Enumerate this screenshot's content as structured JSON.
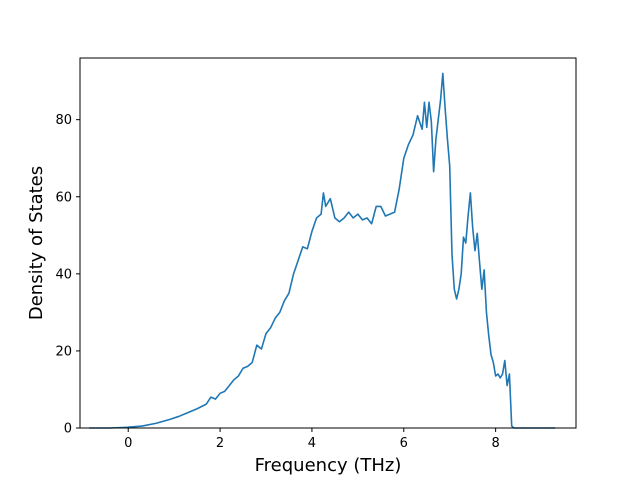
{
  "chart_data": {
    "type": "line",
    "title": "",
    "xlabel": "Frequency (THz)",
    "ylabel": "Density of States",
    "xlim": [
      -1.05,
      9.75
    ],
    "ylim": [
      0,
      96
    ],
    "grid": false,
    "legend": "none",
    "color": "#1f77b4",
    "x_ticks": [
      {
        "value": 0,
        "label": "0"
      },
      {
        "value": 2,
        "label": "2"
      },
      {
        "value": 4,
        "label": "4"
      },
      {
        "value": 6,
        "label": "6"
      },
      {
        "value": 8,
        "label": "8"
      }
    ],
    "y_ticks": [
      {
        "value": 0,
        "label": "0"
      },
      {
        "value": 20,
        "label": "20"
      },
      {
        "value": 40,
        "label": "40"
      },
      {
        "value": 60,
        "label": "60"
      },
      {
        "value": 80,
        "label": "80"
      }
    ],
    "series": [
      {
        "x": [
          -0.85,
          -0.4,
          0.0,
          0.3,
          0.6,
          0.9,
          1.1,
          1.3,
          1.5,
          1.7,
          1.8,
          1.9,
          2.0,
          2.1,
          2.2,
          2.3,
          2.4,
          2.5,
          2.6,
          2.7,
          2.8,
          2.9,
          3.0,
          3.1,
          3.2,
          3.3,
          3.4,
          3.5,
          3.6,
          3.7,
          3.8,
          3.9,
          4.0,
          4.1,
          4.2,
          4.25,
          4.3,
          4.4,
          4.5,
          4.6,
          4.7,
          4.8,
          4.9,
          5.0,
          5.1,
          5.2,
          5.3,
          5.4,
          5.5,
          5.6,
          5.7,
          5.8,
          5.9,
          6.0,
          6.1,
          6.2,
          6.3,
          6.4,
          6.45,
          6.5,
          6.55,
          6.6,
          6.65,
          6.7,
          6.75,
          6.8,
          6.85,
          6.9,
          6.95,
          7.0,
          7.05,
          7.1,
          7.15,
          7.2,
          7.25,
          7.3,
          7.35,
          7.4,
          7.45,
          7.5,
          7.55,
          7.6,
          7.65,
          7.7,
          7.75,
          7.8,
          7.85,
          7.9,
          7.95,
          8.0,
          8.05,
          8.1,
          8.15,
          8.2,
          8.25,
          8.3,
          8.35,
          8.4,
          8.45,
          8.5,
          8.52,
          8.55,
          9.3
        ],
        "y": [
          0,
          0,
          0.2,
          0.5,
          1.2,
          2.2,
          3.0,
          4.0,
          5.0,
          6.2,
          8.0,
          7.5,
          9.0,
          9.5,
          11.0,
          12.5,
          13.5,
          15.5,
          16.0,
          17.0,
          21.5,
          20.5,
          24.5,
          26.0,
          28.5,
          30.0,
          33.0,
          35.0,
          40.0,
          43.5,
          47.0,
          46.5,
          51.0,
          54.5,
          55.5,
          61.0,
          57.5,
          59.5,
          54.5,
          53.5,
          54.5,
          56.0,
          54.5,
          55.5,
          54.0,
          54.5,
          53.0,
          57.5,
          57.5,
          55.0,
          55.5,
          56.0,
          62.0,
          70.0,
          73.5,
          76.0,
          81.0,
          77.5,
          84.5,
          78.0,
          84.5,
          79.5,
          66.5,
          75.0,
          80.0,
          85.0,
          92.0,
          83.0,
          75.0,
          68.0,
          45.0,
          36.0,
          33.5,
          36.0,
          40.0,
          49.5,
          48.0,
          55.0,
          61.0,
          52.0,
          46.0,
          50.5,
          43.0,
          36.0,
          41.0,
          30.0,
          24.0,
          19.0,
          17.0,
          13.5,
          14.0,
          13.0,
          14.0,
          17.5,
          11.0,
          14.0,
          0.5,
          0,
          0,
          0,
          0,
          0,
          0
        ]
      }
    ]
  }
}
